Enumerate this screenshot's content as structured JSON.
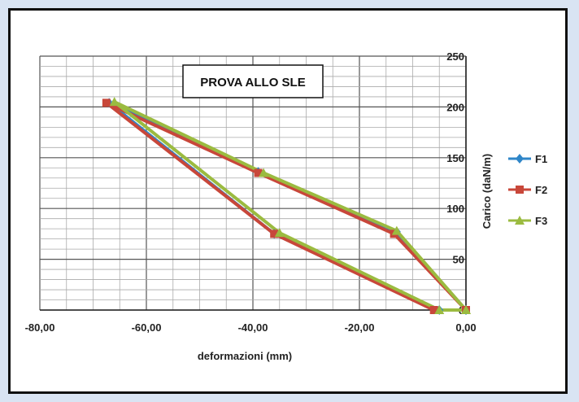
{
  "chart_data": {
    "type": "line",
    "title": "PROVA ALLO SLE",
    "xlabel": "deformazioni (mm)",
    "ylabel": "Carico (daN/m)",
    "xlim": [
      -80,
      0
    ],
    "ylim": [
      0,
      250
    ],
    "x_ticks": [
      -80,
      -60,
      -40,
      -20,
      0
    ],
    "x_tick_labels": [
      "-80,00",
      "-60,00",
      "-40,00",
      "-20,00",
      "0,00"
    ],
    "y_ticks": [
      0,
      50,
      100,
      150,
      200,
      250
    ],
    "y_tick_labels": [
      "0",
      "50",
      "100",
      "150",
      "200",
      "250"
    ],
    "grid": true,
    "legend_position": "right",
    "series": [
      {
        "name": "F1",
        "color": "#2f86c8",
        "marker": "diamond",
        "points": [
          [
            0,
            0
          ],
          [
            -13,
            77
          ],
          [
            -39,
            136
          ],
          [
            -67,
            204
          ],
          [
            -36,
            75
          ],
          [
            -5,
            0
          ],
          [
            0,
            0
          ]
        ]
      },
      {
        "name": "F2",
        "color": "#c8473a",
        "marker": "square",
        "points": [
          [
            0,
            0
          ],
          [
            -13.5,
            75
          ],
          [
            -39,
            135
          ],
          [
            -67.5,
            204
          ],
          [
            -36,
            75
          ],
          [
            -6,
            0
          ],
          [
            0,
            0
          ]
        ]
      },
      {
        "name": "F3",
        "color": "#9bbb40",
        "marker": "triangle",
        "points": [
          [
            0,
            0
          ],
          [
            -13,
            78
          ],
          [
            -38,
            135
          ],
          [
            -66,
            205
          ],
          [
            -35,
            76
          ],
          [
            -5,
            0
          ],
          [
            0,
            0
          ]
        ]
      }
    ]
  }
}
